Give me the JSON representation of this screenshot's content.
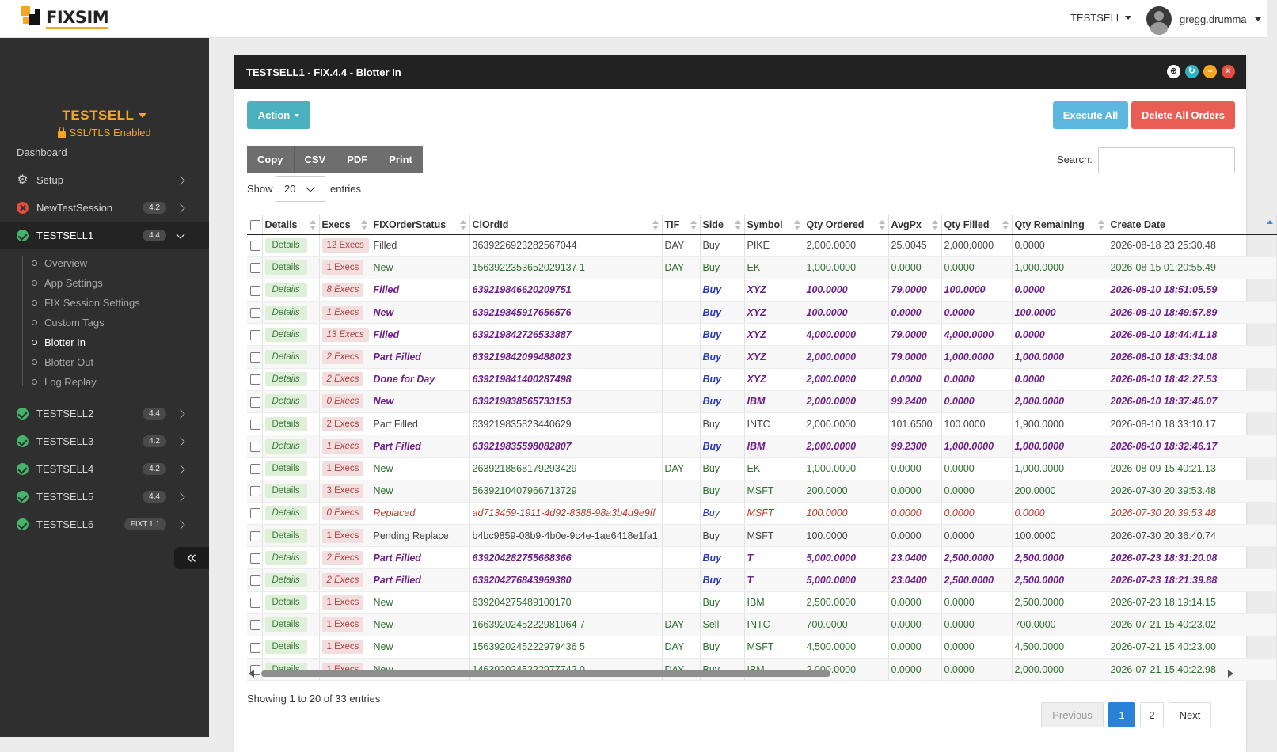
{
  "app": {
    "logo_text": "FIXSIM"
  },
  "topbar": {
    "session": "TESTSELL",
    "user": "gregg.drumma"
  },
  "sidebar": {
    "session_name": "TESTSELL",
    "ssl": "SSL/TLS Enabled",
    "dashboard": "Dashboard",
    "setup": "Setup",
    "items": [
      {
        "label": "NewTestSession",
        "badge": "4.2",
        "status": "error"
      },
      {
        "label": "TESTSELL1",
        "badge": "4.4",
        "status": "ok"
      },
      {
        "label": "TESTSELL2",
        "badge": "4.4",
        "status": "ok"
      },
      {
        "label": "TESTSELL3",
        "badge": "4.2",
        "status": "ok"
      },
      {
        "label": "TESTSELL4",
        "badge": "4.2",
        "status": "ok"
      },
      {
        "label": "TESTSELL5",
        "badge": "4.4",
        "status": "ok"
      },
      {
        "label": "TESTSELL6",
        "badge": "FIXT.1.1",
        "status": "ok"
      }
    ],
    "subitems": [
      "Overview",
      "App Settings",
      "FIX Session Settings",
      "Custom Tags",
      "Blotter In",
      "Blotter Out",
      "Log Replay"
    ],
    "collapse_icon": "«"
  },
  "panel": {
    "title": "TESTSELL1 - FIX.4.4 - Blotter In",
    "action_label": "Action",
    "execute_all": "Execute All",
    "delete_all": "Delete All Orders",
    "exports": [
      "Copy",
      "CSV",
      "PDF",
      "Print"
    ],
    "search_label": "Search:",
    "search_value": "",
    "show_label": "Show",
    "show_value": "20",
    "entries_label": "entries",
    "info": "Showing 1 to 20 of 33 entries",
    "pager": {
      "previous": "Previous",
      "page1": "1",
      "page2": "2",
      "next": "Next"
    }
  },
  "table": {
    "columns": [
      "Details",
      "Execs",
      "FIXOrderStatus",
      "ClOrdId",
      "TIF",
      "Side",
      "Symbol",
      "Qty Ordered",
      "AvgPx",
      "Qty Filled",
      "Qty Remaining",
      "Create Date"
    ],
    "details_label": "Details",
    "rows": [
      {
        "style": "plain",
        "execs": "12 Execs",
        "status": "Filled",
        "clordid": "3639226923282567044",
        "tif": "DAY",
        "side": "Buy",
        "symbol": "PIKE",
        "qty": "2,000.0000",
        "avgpx": "25.0045",
        "filled": "2,000.0000",
        "remaining": "0.0000",
        "date": "2026-08-18 23:25:30.48"
      },
      {
        "style": "newc",
        "execs": "1 Execs",
        "status": "New",
        "clordid": "1563922353652029137 1",
        "tif": "DAY",
        "side": "Buy",
        "symbol": "EK",
        "qty": "1,000.0000",
        "avgpx": "0.0000",
        "filled": "0.0000",
        "remaining": "1,000.0000",
        "date": "2026-08-15 01:20:55.49"
      },
      {
        "style": "bp",
        "execs": "8 Execs",
        "status": "Filled",
        "clordid": "639219846620209751",
        "tif": "",
        "side": "Buy",
        "symbol": "XYZ",
        "qty": "100.0000",
        "avgpx": "79.0000",
        "filled": "100.0000",
        "remaining": "0.0000",
        "date": "2026-08-10 18:51:05.59"
      },
      {
        "style": "bp",
        "execs": "1 Execs",
        "status": "New",
        "clordid": "639219845917656576",
        "tif": "",
        "side": "Buy",
        "symbol": "XYZ",
        "qty": "100.0000",
        "avgpx": "0.0000",
        "filled": "0.0000",
        "remaining": "100.0000",
        "date": "2026-08-10 18:49:57.89"
      },
      {
        "style": "bp",
        "execs": "13 Execs",
        "status": "Filled",
        "clordid": "639219842726533887",
        "tif": "",
        "side": "Buy",
        "symbol": "XYZ",
        "qty": "4,000.0000",
        "avgpx": "79.0000",
        "filled": "4,000.0000",
        "remaining": "0.0000",
        "date": "2026-08-10 18:44:41.18"
      },
      {
        "style": "bp",
        "execs": "2 Execs",
        "status": "Part Filled",
        "clordid": "639219842099488023",
        "tif": "",
        "side": "Buy",
        "symbol": "XYZ",
        "qty": "2,000.0000",
        "avgpx": "79.0000",
        "filled": "1,000.0000",
        "remaining": "1,000.0000",
        "date": "2026-08-10 18:43:34.08"
      },
      {
        "style": "bp",
        "execs": "2 Execs",
        "status": "Done for Day",
        "clordid": "639219841400287498",
        "tif": "",
        "side": "Buy",
        "symbol": "XYZ",
        "qty": "2,000.0000",
        "avgpx": "0.0000",
        "filled": "0.0000",
        "remaining": "0.0000",
        "date": "2026-08-10 18:42:27.53"
      },
      {
        "style": "bp",
        "execs": "0 Execs",
        "status": "New",
        "clordid": "639219838565733153",
        "tif": "",
        "side": "Buy",
        "symbol": "IBM",
        "qty": "2,000.0000",
        "avgpx": "99.2400",
        "filled": "0.0000",
        "remaining": "2,000.0000",
        "date": "2026-08-10 18:37:46.07"
      },
      {
        "style": "plain",
        "execs": "2 Execs",
        "status": "Part Filled",
        "clordid": "639219835823440629",
        "tif": "",
        "side": "Buy",
        "symbol": "INTC",
        "qty": "2,000.0000",
        "avgpx": "101.6500",
        "filled": "100.0000",
        "remaining": "1,900.0000",
        "date": "2026-08-10 18:33:10.17"
      },
      {
        "style": "bp",
        "execs": "1 Execs",
        "status": "Part Filled",
        "clordid": "639219835598082807",
        "tif": "",
        "side": "Buy",
        "symbol": "IBM",
        "qty": "2,000.0000",
        "avgpx": "99.2300",
        "filled": "1,000.0000",
        "remaining": "1,000.0000",
        "date": "2026-08-10 18:32:46.17"
      },
      {
        "style": "newc",
        "execs": "1 Execs",
        "status": "New",
        "clordid": "2639218868179293429",
        "tif": "DAY",
        "side": "Buy",
        "symbol": "EK",
        "qty": "1,000.0000",
        "avgpx": "0.0000",
        "filled": "0.0000",
        "remaining": "1,000.0000",
        "date": "2026-08-09 15:40:21.13"
      },
      {
        "style": "newc",
        "execs": "3 Execs",
        "status": "New",
        "clordid": "5639210407966713729",
        "tif": "",
        "side": "Buy",
        "symbol": "MSFT",
        "qty": "200.0000",
        "avgpx": "0.0000",
        "filled": "0.0000",
        "remaining": "200.0000",
        "date": "2026-07-30 20:39:53.48"
      },
      {
        "style": "rep",
        "execs": "0 Execs",
        "status": "Replaced",
        "clordid": "ad713459-1911-4d92-8388-98a3b4d9e9ff",
        "tif": "",
        "side": "Buy",
        "symbol": "MSFT",
        "qty": "100.0000",
        "avgpx": "0.0000",
        "filled": "0.0000",
        "remaining": "0.0000",
        "date": "2026-07-30 20:39:53.48"
      },
      {
        "style": "plain",
        "execs": "1 Execs",
        "status": "Pending Replace",
        "clordid": "b4bc9859-08b9-4b0e-9c4e-1ae6418e1fa1",
        "tif": "",
        "side": "Buy",
        "symbol": "MSFT",
        "qty": "100.0000",
        "avgpx": "0.0000",
        "filled": "0.0000",
        "remaining": "100.0000",
        "date": "2026-07-30 20:36:40.74"
      },
      {
        "style": "bp",
        "execs": "2 Execs",
        "status": "Part Filled",
        "clordid": "639204282755668366",
        "tif": "",
        "side": "Buy",
        "symbol": "T",
        "qty": "5,000.0000",
        "avgpx": "23.0400",
        "filled": "2,500.0000",
        "remaining": "2,500.0000",
        "date": "2026-07-23 18:31:20.08"
      },
      {
        "style": "bp",
        "execs": "2 Execs",
        "status": "Part Filled",
        "clordid": "639204276843969380",
        "tif": "",
        "side": "Buy",
        "symbol": "T",
        "qty": "5,000.0000",
        "avgpx": "23.0400",
        "filled": "2,500.0000",
        "remaining": "2,500.0000",
        "date": "2026-07-23 18:21:39.88"
      },
      {
        "style": "newc",
        "execs": "1 Execs",
        "status": "New",
        "clordid": "639204275489100170",
        "tif": "",
        "side": "Buy",
        "symbol": "IBM",
        "qty": "2,500.0000",
        "avgpx": "0.0000",
        "filled": "0.0000",
        "remaining": "2,500.0000",
        "date": "2026-07-23 18:19:14.15"
      },
      {
        "style": "newc",
        "execs": "1 Execs",
        "status": "New",
        "clordid": "1663920245222981064 7",
        "tif": "DAY",
        "side": "Sell",
        "symbol": "INTC",
        "qty": "700.0000",
        "avgpx": "0.0000",
        "filled": "0.0000",
        "remaining": "700.0000",
        "date": "2026-07-21 15:40:23.02"
      },
      {
        "style": "newc",
        "execs": "1 Execs",
        "status": "New",
        "clordid": "1563920245222979436 5",
        "tif": "DAY",
        "side": "Buy",
        "symbol": "MSFT",
        "qty": "4,500.0000",
        "avgpx": "0.0000",
        "filled": "0.0000",
        "remaining": "4,500.0000",
        "date": "2026-07-21 15:40:23.00"
      },
      {
        "style": "newc",
        "execs": "1 Execs",
        "status": "New",
        "clordid": "1463920245222977742 0",
        "tif": "DAY",
        "side": "Buy",
        "symbol": "IBM",
        "qty": "2,000.0000",
        "avgpx": "0.0000",
        "filled": "0.0000",
        "remaining": "2,000.0000",
        "date": "2026-07-21 15:40:22.98"
      }
    ]
  }
}
